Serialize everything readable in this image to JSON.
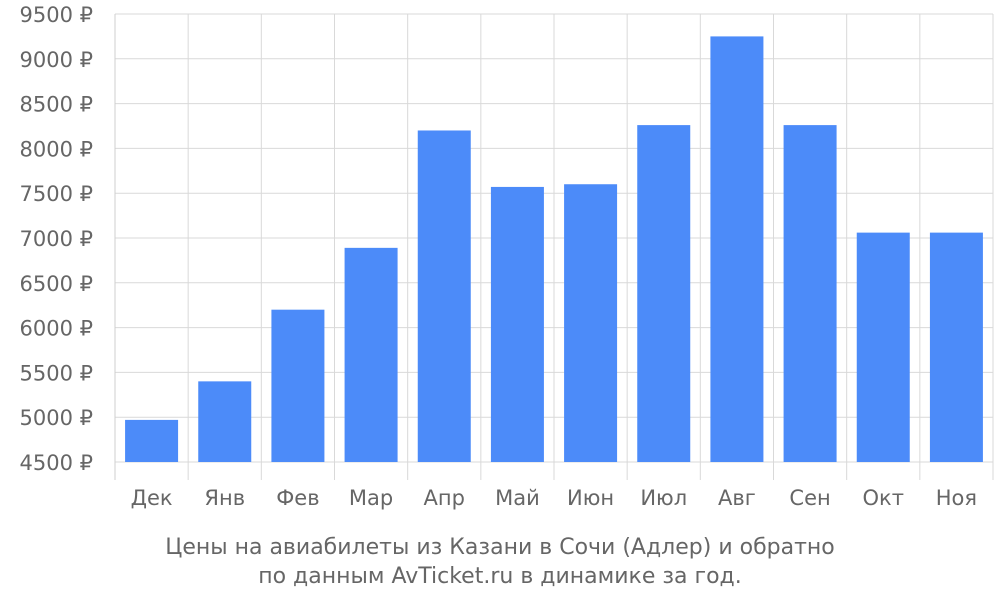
{
  "chart_data": {
    "type": "bar",
    "categories": [
      "Дек",
      "Янв",
      "Фев",
      "Мар",
      "Апр",
      "Май",
      "Июн",
      "Июл",
      "Авг",
      "Сен",
      "Окт",
      "Ноя"
    ],
    "values": [
      4970,
      5400,
      6200,
      6890,
      8200,
      7570,
      7600,
      8260,
      9250,
      8260,
      7060,
      7060
    ],
    "y_ticks": [
      "4500 ₽",
      "5000 ₽",
      "5500 ₽",
      "6000 ₽",
      "6500 ₽",
      "7000 ₽",
      "7500 ₽",
      "8000 ₽",
      "8500 ₽",
      "9000 ₽",
      "9500 ₽"
    ],
    "ylim": [
      4500,
      9500
    ],
    "grid": true,
    "bar_color": "#4c8bf9",
    "grid_color": "#d9d9d9",
    "caption_line1": "Цены на авиабилеты из Казани в Сочи (Адлер) и обратно",
    "caption_line2": "по данным AvTicket.ru в динамике за год."
  }
}
